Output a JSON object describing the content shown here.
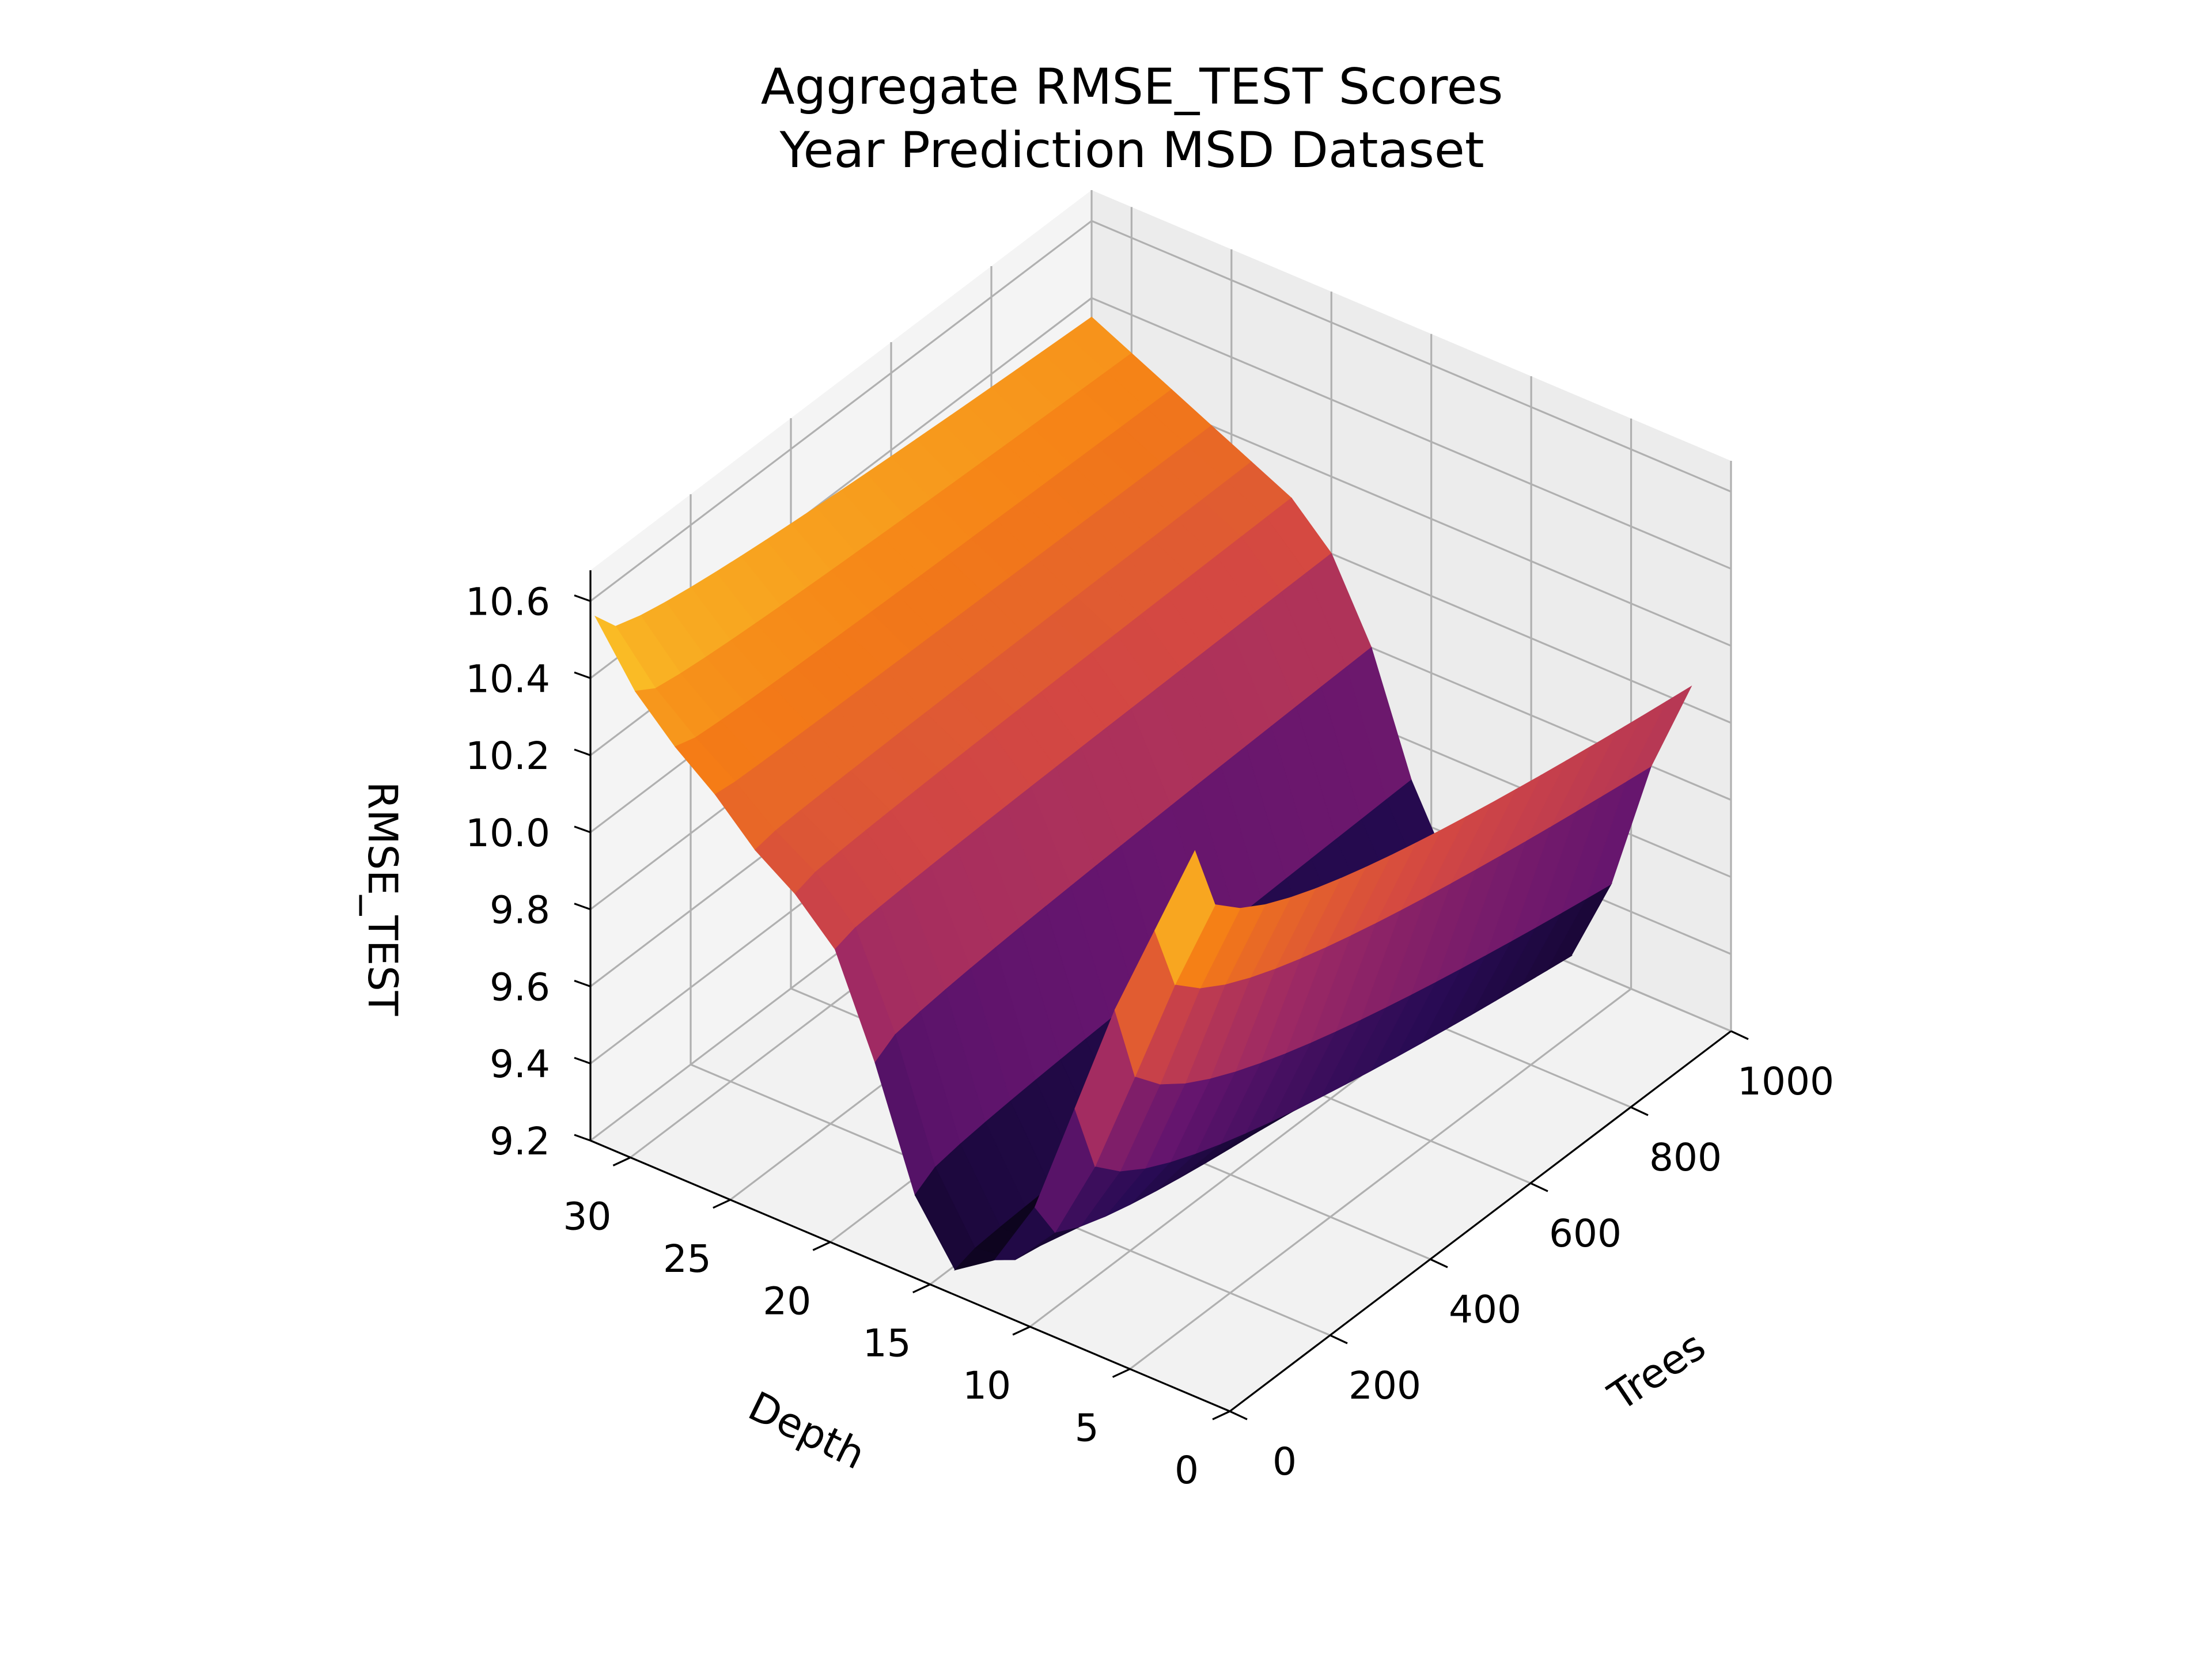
{
  "chart_data": {
    "type": "surface3d",
    "title_lines": [
      "Aggregate RMSE_TEST Scores",
      "Year Prediction MSD Dataset"
    ],
    "xlabel": "Trees",
    "ylabel": "Depth",
    "zlabel": "RMSE_TEST",
    "xlim": [
      0,
      1000
    ],
    "ylim": [
      0,
      32
    ],
    "zlim": [
      9.2,
      10.68
    ],
    "x_ticks": [
      0,
      200,
      400,
      600,
      800,
      1000
    ],
    "x_tick_labels": [
      "0",
      "200",
      "400",
      "600",
      "800",
      "1000"
    ],
    "y_ticks": [
      0,
      5,
      10,
      15,
      20,
      25,
      30
    ],
    "y_tick_labels": [
      "0",
      "5",
      "10",
      "15",
      "20",
      "25",
      "30"
    ],
    "z_ticks": [
      9.2,
      9.4,
      9.6,
      9.8,
      10.0,
      10.2,
      10.4,
      10.6
    ],
    "z_tick_labels": [
      "9.2",
      "9.4",
      "9.6",
      "9.8",
      "10.0",
      "10.2",
      "10.4",
      "10.6"
    ],
    "colormap": "inferno",
    "grid": true,
    "pane_color": "#f2f2f2",
    "trees": [
      10,
      50,
      100,
      150,
      200,
      250,
      300,
      350,
      400,
      450,
      500,
      550,
      600,
      650,
      700,
      750,
      800,
      850,
      900,
      950,
      1000
    ],
    "depth": [
      2,
      4,
      6,
      8,
      10,
      12,
      14,
      16,
      18,
      20,
      22,
      24,
      26,
      28,
      30,
      32
    ],
    "rmse_by_depth_at_min_trees": [
      10.6,
      10.35,
      10.1,
      9.8,
      9.5,
      9.32,
      9.25,
      9.4,
      9.7,
      9.95,
      10.05,
      10.12,
      10.22,
      10.3,
      10.4,
      10.55
    ],
    "rmse_by_depth_at_max_trees": [
      10.05,
      9.8,
      9.45,
      9.22,
      9.18,
      9.2,
      9.3,
      9.5,
      9.8,
      10.0,
      10.1,
      10.15,
      10.2,
      10.25,
      10.3,
      10.35
    ]
  }
}
